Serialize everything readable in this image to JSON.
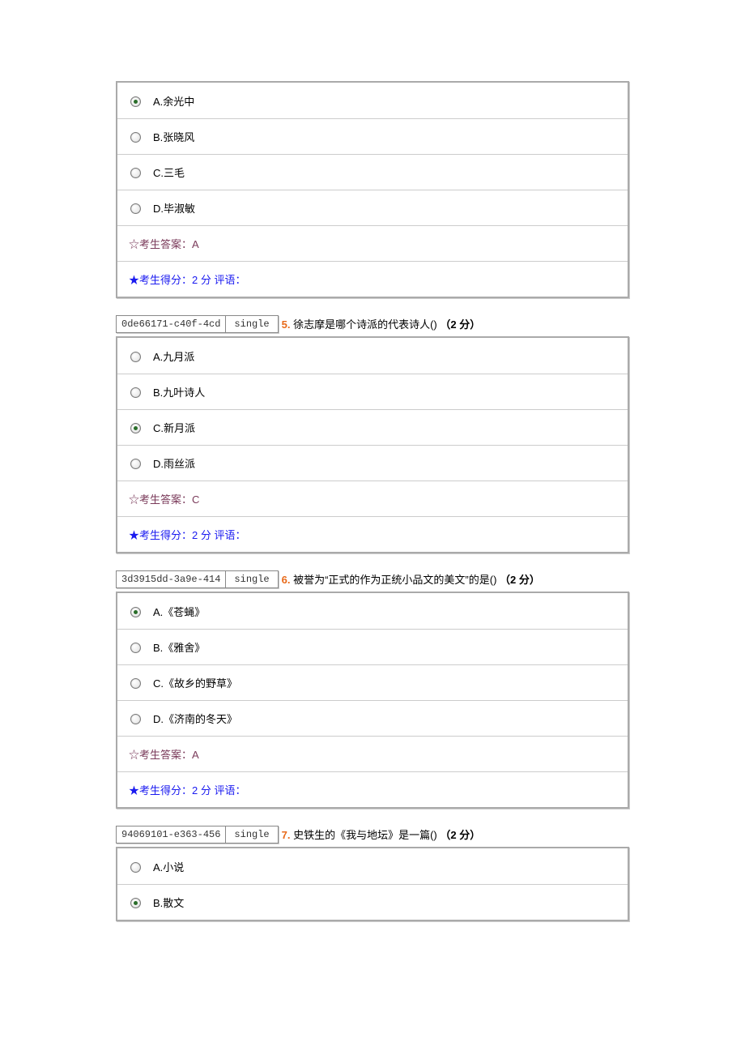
{
  "q4": {
    "options": [
      {
        "label": "A.余光中",
        "selected": true
      },
      {
        "label": "B.张晓风",
        "selected": false
      },
      {
        "label": "C.三毛",
        "selected": false
      },
      {
        "label": "D.毕淑敏",
        "selected": false
      }
    ],
    "answer_line": "☆考生答案：A",
    "score_line": "★考生得分：2 分  评语："
  },
  "q5": {
    "meta_id": "0de66171-c40f-4cd",
    "meta_type": "single",
    "number": "5.",
    "stem": " 徐志摩是哪个诗派的代表诗人() ",
    "points": "（2 分）",
    "options": [
      {
        "label": "A.九月派",
        "selected": false
      },
      {
        "label": "B.九叶诗人",
        "selected": false
      },
      {
        "label": "C.新月派",
        "selected": true
      },
      {
        "label": "D.雨丝派",
        "selected": false
      }
    ],
    "answer_line": "☆考生答案：C",
    "score_line": "★考生得分：2 分  评语："
  },
  "q6": {
    "meta_id": "3d3915dd-3a9e-414",
    "meta_type": "single",
    "number": "6.",
    "stem": " 被誉为“正式的作为正统小品文的美文”的是() ",
    "points": "（2 分）",
    "options": [
      {
        "label": "A.《苍蝇》",
        "selected": true
      },
      {
        "label": "B.《雅舍》",
        "selected": false
      },
      {
        "label": "C.《故乡的野草》",
        "selected": false
      },
      {
        "label": "D.《济南的冬天》",
        "selected": false
      }
    ],
    "answer_line": "☆考生答案：A",
    "score_line": "★考生得分：2 分  评语："
  },
  "q7": {
    "meta_id": "94069101-e363-456",
    "meta_type": "single",
    "number": "7.",
    "stem": " 史铁生的《我与地坛》是一篇() ",
    "points": "（2 分）",
    "options": [
      {
        "label": "A.小说",
        "selected": false
      },
      {
        "label": "B.散文",
        "selected": true
      }
    ]
  }
}
